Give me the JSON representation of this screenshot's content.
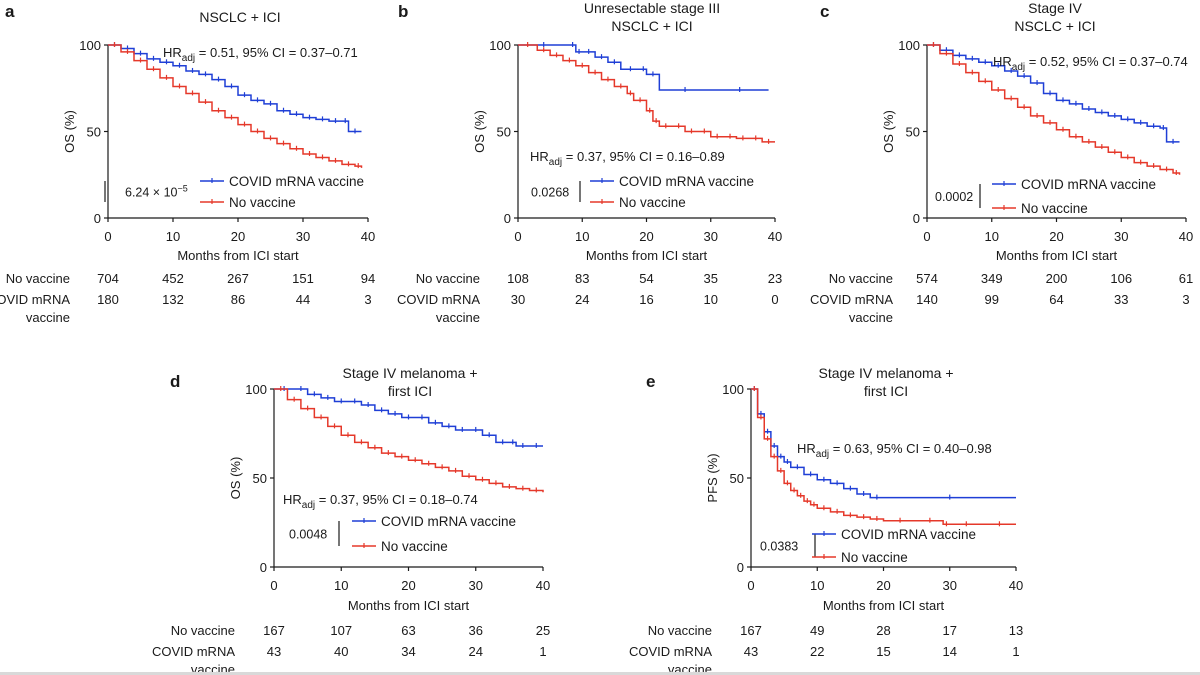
{
  "colors": {
    "vaccine": "#1f3fd6",
    "no_vaccine": "#e5382a",
    "axis": "#1a1a1a"
  },
  "chart_data": [
    {
      "panel": "a",
      "type": "line",
      "title": "NSCLC + ICI",
      "xlabel": "Months from ICI start",
      "ylabel": "OS (%)",
      "xlim": [
        0,
        40
      ],
      "ylim": [
        0,
        100
      ],
      "xticks": [
        0,
        10,
        20,
        30,
        40
      ],
      "yticks": [
        0,
        50,
        100
      ],
      "hr_prefix": "HR",
      "hr_sub": "adj",
      "hr_rest": " = 0.51, 95% CI = 0.37–0.71",
      "pvalue": "6.24 × 10",
      "pvalue_exp": "−5",
      "series": [
        {
          "name": "COVID mRNA vaccine",
          "x": [
            0,
            2,
            4,
            6,
            8,
            10,
            12,
            14,
            16,
            18,
            20,
            22,
            24,
            26,
            28,
            30,
            32,
            34,
            36,
            37,
            39
          ],
          "y": [
            100,
            98,
            95,
            92,
            90,
            88,
            85,
            83,
            80,
            76,
            71,
            68,
            66,
            62,
            60,
            58,
            57,
            56,
            56,
            50,
            50
          ]
        },
        {
          "name": "No vaccine",
          "x": [
            0,
            2,
            4,
            6,
            8,
            10,
            12,
            14,
            16,
            18,
            20,
            22,
            24,
            26,
            28,
            30,
            32,
            34,
            36,
            38,
            39
          ],
          "y": [
            100,
            96,
            91,
            86,
            81,
            76,
            72,
            67,
            62,
            58,
            54,
            50,
            46,
            43,
            40,
            37,
            35,
            33,
            31,
            30,
            29
          ]
        }
      ],
      "risk_table": {
        "rows": [
          {
            "label": "No vaccine",
            "values": [
              "704",
              "452",
              "267",
              "151",
              "94"
            ]
          },
          {
            "label": "COVID mRNA",
            "label2": "vaccine",
            "values": [
              "180",
              "132",
              "86",
              "44",
              "3"
            ]
          }
        ]
      }
    },
    {
      "panel": "b",
      "type": "line",
      "title": "Unresectable stage III",
      "title2": "NSCLC + ICI",
      "xlabel": "Months from ICI start",
      "ylabel": "OS (%)",
      "xlim": [
        0,
        40
      ],
      "ylim": [
        0,
        100
      ],
      "xticks": [
        0,
        10,
        20,
        30,
        40
      ],
      "yticks": [
        0,
        50,
        100
      ],
      "hr_prefix": "HR",
      "hr_sub": "adj",
      "hr_rest": " = 0.37, 95% CI = 0.16–0.89",
      "pvalue": "0.0268",
      "pvalue_exp": "",
      "series": [
        {
          "name": "COVID mRNA vaccine",
          "x": [
            0,
            8,
            9,
            10,
            12,
            14,
            16,
            19,
            20,
            22,
            30,
            39
          ],
          "y": [
            100,
            100,
            96,
            96,
            93,
            90,
            86,
            86,
            83,
            74,
            74,
            74
          ]
        },
        {
          "name": "No vaccine",
          "x": [
            0,
            3,
            5,
            7,
            9,
            11,
            13,
            15,
            17,
            18,
            20,
            21,
            22,
            24,
            26,
            28,
            30,
            32,
            34,
            36,
            38,
            40
          ],
          "y": [
            100,
            97,
            94,
            91,
            88,
            84,
            80,
            76,
            72,
            68,
            62,
            56,
            53,
            53,
            50,
            50,
            47,
            47,
            46,
            46,
            44,
            44
          ]
        }
      ],
      "risk_table": {
        "rows": [
          {
            "label": "No vaccine",
            "values": [
              "108",
              "83",
              "54",
              "35",
              "23"
            ]
          },
          {
            "label": "COVID mRNA",
            "label2": "vaccine",
            "values": [
              "30",
              "24",
              "16",
              "10",
              "0"
            ]
          }
        ]
      }
    },
    {
      "panel": "c",
      "type": "line",
      "title": "Stage IV",
      "title2": "NSCLC + ICI",
      "xlabel": "Months from ICI start",
      "ylabel": "OS (%)",
      "xlim": [
        0,
        40
      ],
      "ylim": [
        0,
        100
      ],
      "xticks": [
        0,
        10,
        20,
        30,
        40
      ],
      "yticks": [
        0,
        50,
        100
      ],
      "hr_prefix": "HR",
      "hr_sub": "adj",
      "hr_rest": " = 0.52, 95% CI = 0.37–0.74",
      "pvalue": "0.0002",
      "pvalue_exp": "",
      "series": [
        {
          "name": "COVID mRNA vaccine",
          "x": [
            0,
            2,
            4,
            6,
            8,
            10,
            12,
            14,
            16,
            18,
            20,
            22,
            24,
            26,
            28,
            30,
            32,
            34,
            36,
            37,
            39
          ],
          "y": [
            100,
            97,
            94,
            92,
            90,
            88,
            85,
            82,
            78,
            72,
            68,
            66,
            63,
            61,
            59,
            57,
            55,
            53,
            52,
            44,
            44
          ]
        },
        {
          "name": "No vaccine",
          "x": [
            0,
            2,
            4,
            6,
            8,
            10,
            12,
            14,
            16,
            18,
            20,
            22,
            24,
            26,
            28,
            30,
            32,
            34,
            36,
            38,
            39
          ],
          "y": [
            100,
            95,
            89,
            84,
            79,
            74,
            69,
            64,
            59,
            55,
            51,
            47,
            44,
            41,
            38,
            35,
            32,
            30,
            28,
            26,
            25
          ]
        }
      ],
      "risk_table": {
        "rows": [
          {
            "label": "No vaccine",
            "values": [
              "574",
              "349",
              "200",
              "106",
              "61"
            ]
          },
          {
            "label": "COVID mRNA",
            "label2": "vaccine",
            "values": [
              "140",
              "99",
              "64",
              "33",
              "3"
            ]
          }
        ]
      }
    },
    {
      "panel": "d",
      "type": "line",
      "title": "Stage IV melanoma +",
      "title2": "first ICI",
      "xlabel": "Months from ICI start",
      "ylabel": "OS (%)",
      "xlim": [
        0,
        40
      ],
      "ylim": [
        0,
        100
      ],
      "xticks": [
        0,
        10,
        20,
        30,
        40
      ],
      "yticks": [
        0,
        50,
        100
      ],
      "hr_prefix": "HR",
      "hr_sub": "adj",
      "hr_rest": " = 0.37, 95% CI = 0.18–0.74",
      "pvalue": "0.0048",
      "pvalue_exp": "",
      "series": [
        {
          "name": "COVID mRNA vaccine",
          "x": [
            0,
            3,
            5,
            7,
            9,
            11,
            13,
            15,
            17,
            19,
            21,
            23,
            25,
            27,
            29,
            31,
            33,
            35,
            36,
            38,
            40
          ],
          "y": [
            100,
            100,
            97,
            95,
            93,
            93,
            91,
            88,
            86,
            84,
            84,
            81,
            79,
            77,
            77,
            74,
            70,
            70,
            68,
            68,
            68
          ]
        },
        {
          "name": "No vaccine",
          "x": [
            0,
            2,
            4,
            6,
            8,
            10,
            12,
            14,
            16,
            18,
            20,
            22,
            24,
            26,
            28,
            30,
            32,
            34,
            36,
            38,
            40
          ],
          "y": [
            100,
            94,
            89,
            84,
            79,
            74,
            70,
            67,
            64,
            62,
            60,
            58,
            56,
            54,
            51,
            49,
            47,
            45,
            44,
            43,
            42
          ]
        }
      ],
      "risk_table": {
        "rows": [
          {
            "label": "No vaccine",
            "values": [
              "167",
              "107",
              "63",
              "36",
              "25"
            ]
          },
          {
            "label": "COVID mRNA",
            "label2": "vaccine",
            "values": [
              "43",
              "40",
              "34",
              "24",
              "1"
            ]
          }
        ]
      }
    },
    {
      "panel": "e",
      "type": "line",
      "title": "Stage IV melanoma +",
      "title2": "first ICI",
      "xlabel": "Months from ICI start",
      "ylabel": "PFS (%)",
      "xlim": [
        0,
        40
      ],
      "ylim": [
        0,
        100
      ],
      "xticks": [
        0,
        10,
        20,
        30,
        40
      ],
      "yticks": [
        0,
        50,
        100
      ],
      "hr_prefix": "HR",
      "hr_sub": "adj",
      "hr_rest": " = 0.63, 95% CI = 0.40–0.98",
      "pvalue": "0.0383",
      "pvalue_exp": "",
      "series": [
        {
          "name": "COVID mRNA vaccine",
          "x": [
            0,
            1,
            2,
            3,
            4,
            5,
            6,
            8,
            10,
            12,
            14,
            16,
            18,
            20,
            40
          ],
          "y": [
            100,
            86,
            76,
            68,
            62,
            59,
            56,
            52,
            49,
            47,
            44,
            41,
            39,
            39,
            39
          ]
        },
        {
          "name": "No vaccine",
          "x": [
            0,
            1,
            2,
            3,
            4,
            5,
            6,
            7,
            8,
            9,
            10,
            12,
            14,
            16,
            18,
            20,
            25,
            29,
            30,
            35,
            40
          ],
          "y": [
            100,
            84,
            72,
            62,
            54,
            47,
            43,
            40,
            37,
            35,
            33,
            31,
            29,
            28,
            27,
            26,
            26,
            24,
            24,
            24,
            24
          ]
        }
      ],
      "risk_table": {
        "rows": [
          {
            "label": "No vaccine",
            "values": [
              "167",
              "49",
              "28",
              "17",
              "13"
            ]
          },
          {
            "label": "COVID mRNA",
            "label2": "vaccine",
            "values": [
              "43",
              "22",
              "15",
              "14",
              "1"
            ]
          }
        ]
      }
    }
  ]
}
